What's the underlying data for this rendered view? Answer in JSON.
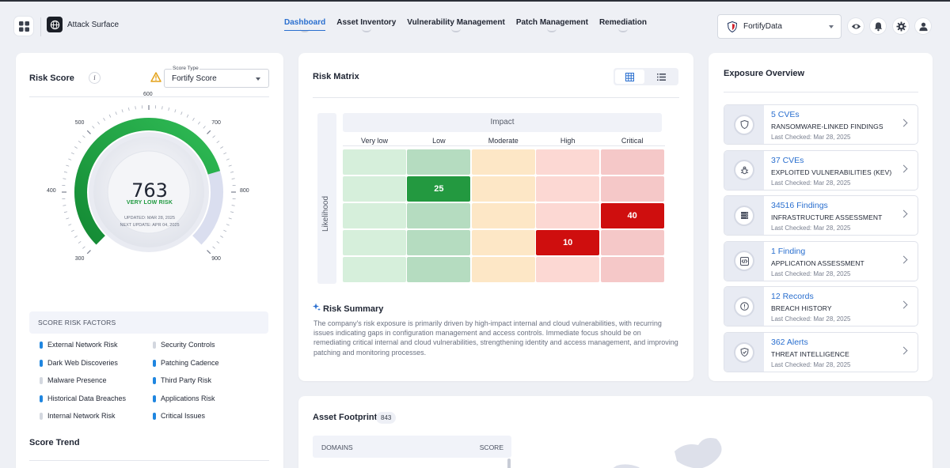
{
  "header": {
    "app_name": "Attack Surface",
    "nav": [
      {
        "label": "Dashboard",
        "active": true
      },
      {
        "label": "Asset Inventory"
      },
      {
        "label": "Vulnerability Management"
      },
      {
        "label": "Patch Management"
      },
      {
        "label": "Remediation"
      }
    ],
    "org_select": "FortifyData"
  },
  "risk_score": {
    "title": "Risk Score",
    "score_type_label": "Score Type",
    "score_type_value": "Fortify Score",
    "score": "763",
    "risk_level": "VERY LOW RISK",
    "updated": "UPDATED: MAR 28, 2025",
    "next_update": "NEXT UPDATE: APR 04, 2025",
    "gauge_min": 300,
    "gauge_max": 900,
    "gauge_value": 763,
    "ticks": [
      "300",
      "400",
      "500",
      "600",
      "700",
      "800",
      "900"
    ],
    "factors_title": "SCORE RISK FACTORS",
    "factors": [
      {
        "label": "External Network Risk",
        "active": true
      },
      {
        "label": "Security Controls",
        "active": false
      },
      {
        "label": "Dark Web Discoveries",
        "active": true
      },
      {
        "label": "Patching Cadence",
        "active": true
      },
      {
        "label": "Malware Presence",
        "active": false
      },
      {
        "label": "Third Party Risk",
        "active": true
      },
      {
        "label": "Historical Data Breaches",
        "active": true
      },
      {
        "label": "Applications Risk",
        "active": true
      },
      {
        "label": "Internal Network Risk",
        "active": false
      },
      {
        "label": "Critical Issues",
        "active": true
      }
    ],
    "trend_title": "Score Trend"
  },
  "risk_matrix": {
    "title": "Risk Matrix",
    "impact_label": "Impact",
    "likelihood_label": "Likelihood",
    "columns": [
      "Very low",
      "Low",
      "Moderate",
      "High",
      "Critical"
    ],
    "values": [
      [
        "",
        "",
        "",
        "",
        ""
      ],
      [
        "",
        "25",
        "",
        "",
        ""
      ],
      [
        "",
        "",
        "",
        "",
        "40"
      ],
      [
        "",
        "",
        "",
        "10",
        ""
      ],
      [
        "",
        "",
        "",
        "",
        ""
      ]
    ],
    "colors": {
      "very_low": "#d6efdb",
      "low": "#b5dcc0",
      "moderate": "#fde7c6",
      "high": "#fcd8d3",
      "critical": "#f5c8c8",
      "low_active": "#239940",
      "high_active": "#cf0e0e",
      "critical_active": "#cf0e0e"
    },
    "summary_title": "Risk Summary",
    "summary_text": "The company's risk exposure is primarily driven by high-impact internal and cloud vulnerabilities, with recurring issues indicating gaps in configuration management and access controls. Immediate focus should be on remediating critical internal and cloud vulnerabilities, strengthening identity and access management, and improving patching and monitoring processes."
  },
  "exposure": {
    "title": "Exposure Overview",
    "items": [
      {
        "count": "5 CVEs",
        "name": "RANSOMWARE-LINKED FINDINGS",
        "checked": "Last Checked: Mar 28, 2025",
        "icon": "shield-icon"
      },
      {
        "count": "37 CVEs",
        "name": "EXPLOITED VULNERABILITIES (KEV)",
        "checked": "Last Checked: Mar 28, 2025",
        "icon": "bug-icon"
      },
      {
        "count": "34516 Findings",
        "name": "INFRASTRUCTURE ASSESSMENT",
        "checked": "Last Checked: Mar 28, 2025",
        "icon": "server-icon"
      },
      {
        "count": "1 Finding",
        "name": "APPLICATION ASSESSMENT",
        "checked": "Last Checked: Mar 28, 2025",
        "icon": "code-icon"
      },
      {
        "count": "12 Records",
        "name": "BREACH HISTORY",
        "checked": "Last Checked: Mar 28, 2025",
        "icon": "alert-circle-icon"
      },
      {
        "count": "362 Alerts",
        "name": "THREAT INTELLIGENCE",
        "checked": "Last Checked: Mar 28, 2025",
        "icon": "shield-check-icon"
      }
    ]
  },
  "asset_footprint": {
    "title": "Asset Footprint",
    "count": "843",
    "col_domains": "DOMAINS",
    "col_score": "SCORE"
  }
}
